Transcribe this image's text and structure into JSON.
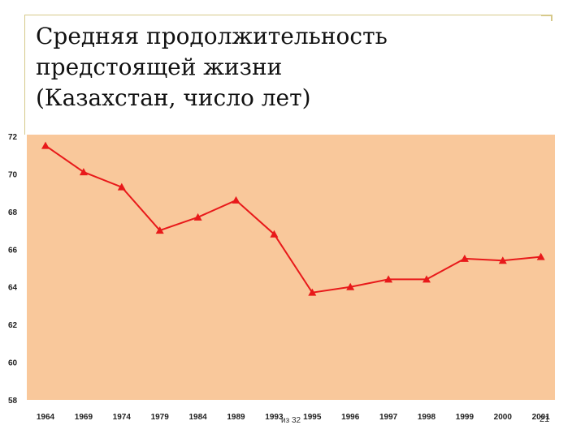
{
  "slide": {
    "title_lines": [
      "Средняя продолжительность",
      "предстоящей жизни",
      "(Казахстан, число лет)"
    ],
    "page_label": "из 32",
    "slide_number": "21"
  },
  "chart_data": {
    "type": "line",
    "title": "",
    "xlabel": "",
    "ylabel": "",
    "categories": [
      "1964",
      "1969",
      "1974",
      "1979",
      "1984",
      "1989",
      "1993",
      "1995",
      "1996",
      "1997",
      "1998",
      "1999",
      "2000",
      "2001"
    ],
    "series": [
      {
        "values": [
          71.5,
          70.1,
          69.3,
          67.0,
          67.7,
          68.6,
          66.8,
          63.7,
          64.0,
          64.4,
          64.4,
          65.5,
          65.4,
          65.6
        ]
      }
    ],
    "ylim": [
      58,
      72
    ],
    "yticks": [
      58,
      60,
      62,
      64,
      66,
      68,
      70,
      72
    ],
    "grid": false,
    "legend": "none",
    "colors": {
      "plot_background": "#f9c89b",
      "line": "#e8191a",
      "marker": "#e8191a"
    }
  }
}
